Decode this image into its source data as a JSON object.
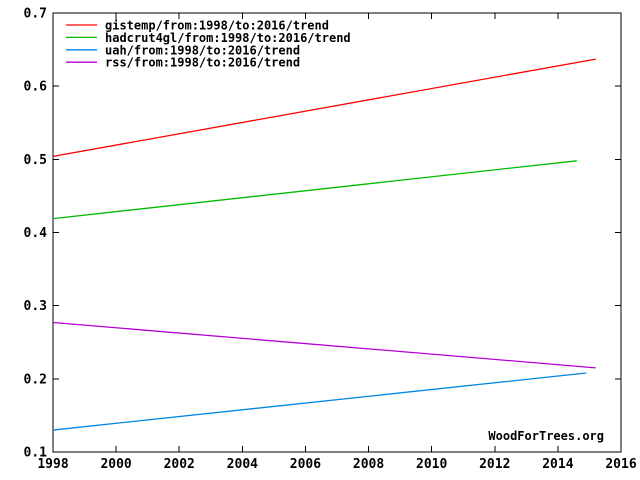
{
  "page": {
    "background_color": "#ffffff",
    "axis_color": "#000000",
    "watermark": "WoodForTrees.org"
  },
  "chart_data": {
    "type": "line",
    "title": "",
    "xlabel": "",
    "ylabel": "",
    "xlim": [
      1998,
      2016
    ],
    "ylim": [
      0.1,
      0.7
    ],
    "x_ticks": [
      1998,
      2000,
      2002,
      2004,
      2006,
      2008,
      2010,
      2012,
      2014,
      2016
    ],
    "y_ticks": [
      0.1,
      0.2,
      0.3,
      0.4,
      0.5,
      0.6,
      0.7
    ],
    "grid": false,
    "legend_position": "top-left",
    "series": [
      {
        "name": "gistemp/from:1998/to:2016/trend",
        "id": "gistemp",
        "color": "#ff0000",
        "x": [
          1998,
          2015.2
        ],
        "y": [
          0.504,
          0.637
        ]
      },
      {
        "name": "hadcrut4gl/from:1998/to:2016/trend",
        "id": "hadcrut4gl",
        "color": "#00bb00",
        "x": [
          1998,
          2014.6
        ],
        "y": [
          0.419,
          0.498
        ]
      },
      {
        "name": "uah/from:1998/to:2016/trend",
        "id": "uah",
        "color": "#0085e0",
        "x": [
          1998,
          2014.9
        ],
        "y": [
          0.13,
          0.208
        ]
      },
      {
        "name": "rss/from:1998/to:2016/trend",
        "id": "rss",
        "color": "#b400d2",
        "x": [
          1998,
          2015.2
        ],
        "y": [
          0.277,
          0.215
        ]
      }
    ],
    "watermark": "WoodForTrees.org"
  }
}
